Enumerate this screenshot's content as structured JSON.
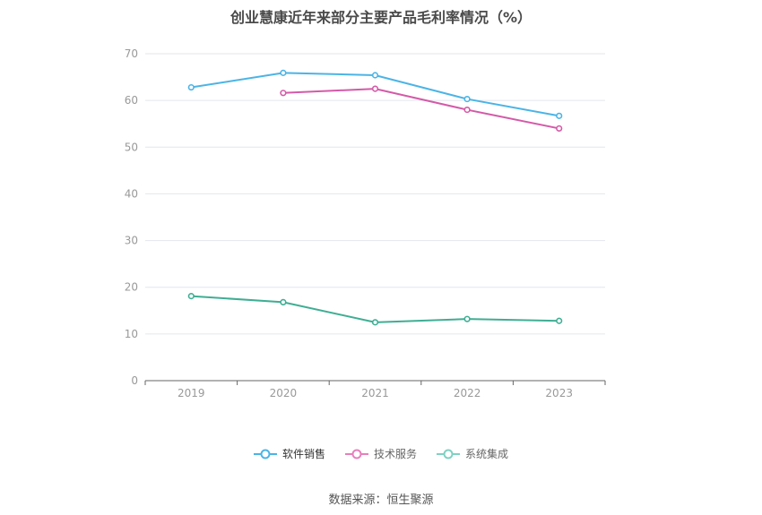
{
  "title": "创业慧康近年来部分主要产品毛利率情况（%）",
  "source": "数据来源：恒生聚源",
  "legend": [
    {
      "name": "软件销售",
      "color": "#4bb4e6"
    },
    {
      "name": "技术服务",
      "color": "#e87fbd"
    },
    {
      "name": "系统集成",
      "color": "#7fd1c3"
    }
  ],
  "chart_data": {
    "type": "line",
    "categories": [
      "2019",
      "2020",
      "2021",
      "2022",
      "2023"
    ],
    "ylim": [
      0,
      70
    ],
    "yticks": [
      0,
      10,
      20,
      30,
      40,
      50,
      60,
      70
    ],
    "grid": true,
    "legend_position": "bottom",
    "series": [
      {
        "name": "软件销售",
        "color": "#4bb4e6",
        "values": [
          62.8,
          65.9,
          65.4,
          60.3,
          56.7
        ]
      },
      {
        "name": "技术服务",
        "color": "#d45aa8",
        "values": [
          null,
          61.6,
          62.5,
          58.0,
          54.0
        ]
      },
      {
        "name": "系统集成",
        "color": "#3fae93",
        "values": [
          18.1,
          16.8,
          12.5,
          13.2,
          12.8
        ]
      }
    ]
  }
}
